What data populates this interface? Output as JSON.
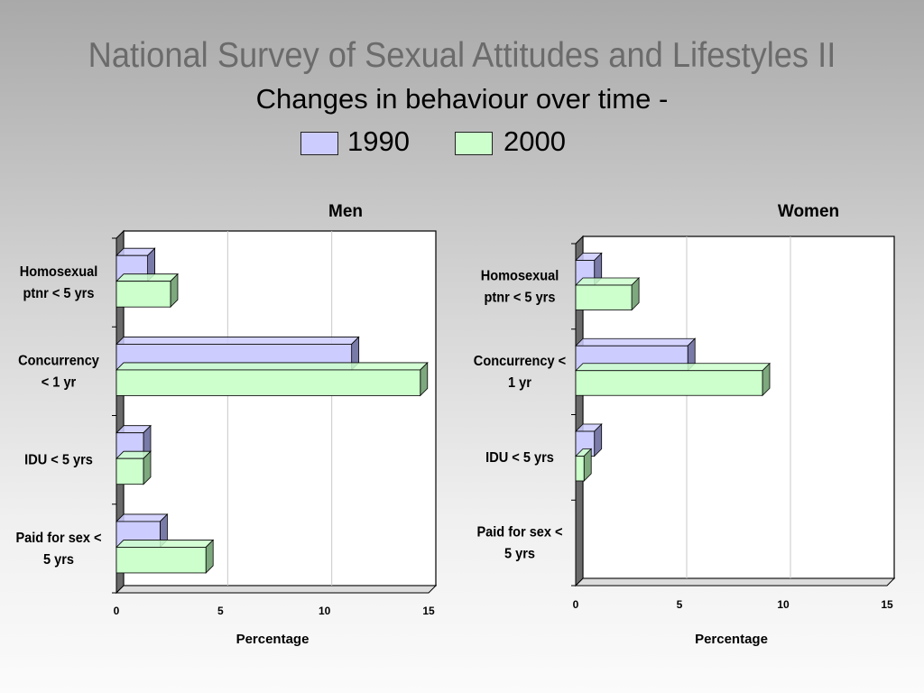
{
  "slide": {
    "title": "National Survey of Sexual Attitudes and Lifestyles II",
    "subtitle": "Changes in behaviour over time -"
  },
  "legend": [
    {
      "label": "1990",
      "color": "#ccccff"
    },
    {
      "label": "2000",
      "color": "#ccffcc"
    }
  ],
  "colors": {
    "series_1990": "#ccccff",
    "series_1990_side": "#7a7aa8",
    "series_2000": "#ccffcc",
    "series_2000_side": "#7ea87e",
    "axis_wall": "#6a6a6a",
    "gridline": "#c8c8c8"
  },
  "chart_data": [
    {
      "type": "bar",
      "orientation": "horizontal",
      "title": "Men",
      "xlabel": "Percentage",
      "ylabel": "",
      "xlim": [
        0,
        15
      ],
      "ticks": [
        "0",
        "5",
        "10",
        "15"
      ],
      "grid": true,
      "categories": [
        [
          "Homosexual",
          "ptnr < 5 yrs"
        ],
        [
          "Concurrency",
          "< 1 yr"
        ],
        [
          "IDU < 5 yrs"
        ],
        [
          "Paid for sex <",
          "5 yrs"
        ]
      ],
      "series": [
        {
          "name": "1990",
          "values": [
            1.5,
            11.3,
            1.3,
            2.1
          ]
        },
        {
          "name": "2000",
          "values": [
            2.6,
            14.6,
            1.3,
            4.3
          ]
        }
      ]
    },
    {
      "type": "bar",
      "orientation": "horizontal",
      "title": "Women",
      "xlabel": "Percentage",
      "ylabel": "",
      "xlim": [
        0,
        15
      ],
      "ticks": [
        "0",
        "5",
        "10",
        "15"
      ],
      "grid": true,
      "categories": [
        [
          "Homosexual",
          "ptnr < 5 yrs"
        ],
        [
          "Concurrency <",
          "1 yr"
        ],
        [
          "IDU < 5 yrs"
        ],
        [
          "Paid for sex <",
          "5 yrs"
        ]
      ],
      "series": [
        {
          "name": "1990",
          "values": [
            0.9,
            5.4,
            0.9,
            0
          ]
        },
        {
          "name": "2000",
          "values": [
            2.7,
            9.0,
            0.4,
            0
          ]
        }
      ]
    }
  ]
}
